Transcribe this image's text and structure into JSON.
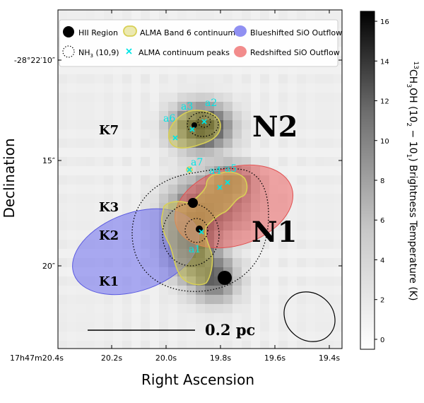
{
  "chart_data": {
    "type": "heatmap",
    "title": "",
    "xlabel": "Right Ascension",
    "ylabel": "Declination",
    "colorbar": {
      "label": "13CH3OH (10_2 - 10_1) Brightness Temperature (K)",
      "label_parts": [
        "13",
        "CH",
        "3",
        "OH (10",
        "2",
        " − 10",
        "1",
        ") Brightness Temperature (K)"
      ],
      "range": [
        -0.5,
        16.5
      ],
      "ticks": [
        "0",
        "2",
        "4",
        "6",
        "8",
        "10",
        "12",
        "14",
        "16"
      ],
      "colormap": "gray_r"
    },
    "xticks": [
      "17h47m20.4s",
      "20.2s",
      "20.0s",
      "19.8s",
      "19.6s",
      "19.4s"
    ],
    "yticks": [
      "-28°22′10″",
      "15″",
      "20″"
    ],
    "legend": {
      "placement": "top",
      "entries": [
        {
          "label": "HII Region",
          "marker": "filled-circle",
          "color": "#000000"
        },
        {
          "label": "ALMA Band 6 continuum",
          "marker": "filled-contour",
          "color": "#d8d055"
        },
        {
          "label": "Blueshifted SiO Outflow",
          "marker": "ellipse",
          "color": "#6a6af0"
        },
        {
          "label": "NH",
          "label_sub": "3",
          "label_rest": " (10,9)",
          "marker": "dotted-circle",
          "color": "#000000"
        },
        {
          "label": "ALMA continuum peaks",
          "marker": "x",
          "color": "#00e5e5"
        },
        {
          "label": "Redshifted SiO Outflow",
          "marker": "ellipse",
          "color": "#ef6a6a"
        }
      ]
    },
    "sources": [
      {
        "name": "N2",
        "role": "region label"
      },
      {
        "name": "N1",
        "role": "region label"
      },
      {
        "name": "K7",
        "role": "HII region"
      },
      {
        "name": "K3",
        "role": "HII region"
      },
      {
        "name": "K2",
        "role": "HII region"
      },
      {
        "name": "K1",
        "role": "HII region"
      }
    ],
    "continuum_peaks": [
      "a1",
      "a2",
      "a3",
      "a4",
      "a5",
      "a6",
      "a7"
    ],
    "scale_bar": "0.2 pc",
    "beam": "ellipse",
    "colors": {
      "blue_outflow": "#6b6bee",
      "red_outflow": "#ee6666",
      "continuum": "#d8d055",
      "peaks": "#00e5e5"
    }
  }
}
